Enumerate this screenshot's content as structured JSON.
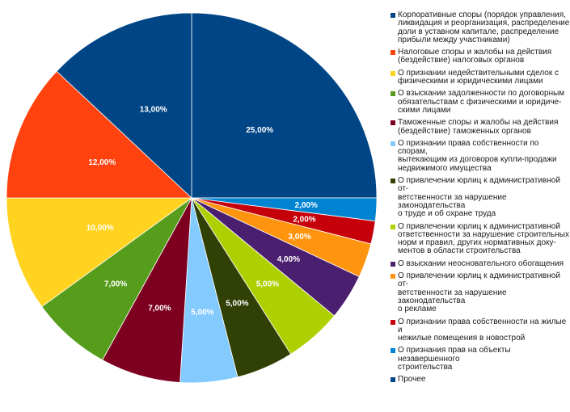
{
  "chart_data": {
    "type": "pie",
    "title": "",
    "start": "12 o'clock, clockwise",
    "slices": [
      {
        "value": 25,
        "label": "25,00%",
        "color": "#004586",
        "legend": "Корпоративные споры (порядок управления,\nликвидация и реорганизация, распределение\nдоли в уставном капитале, распределение\nприбыли между участниками)"
      },
      {
        "value": 2,
        "label": "2,00%",
        "color": "#0084d1",
        "legend": "О признания прав на объекты незавершенного\nстроительства"
      },
      {
        "value": 2,
        "label": "2,00%",
        "color": "#c5000b",
        "legend": "О признании права собственности на жилые и\nнежилые помещения в новострой"
      },
      {
        "value": 3,
        "label": "3,00%",
        "color": "#ff950e",
        "legend": "О привлечении юрлиц к административной от-\nветственности за нарушение законодательства\nо рекламе"
      },
      {
        "value": 4,
        "label": "4,00%",
        "color": "#4b1f6f",
        "legend": "О взыскании неосновательного обогащения"
      },
      {
        "value": 5,
        "label": "5,00%",
        "color": "#aecf00",
        "legend": "О привлечении юрлиц к административной\nответственности за нарушение строительных\nнорм и правил, других нормативных доку-\nментов в области строительства"
      },
      {
        "value": 5,
        "label": "5,00%",
        "color": "#314004",
        "legend": "О привлечении юрлиц к административной от-\nветственности за нарушение законодательства\nо труде и об охране труда"
      },
      {
        "value": 5,
        "label": "5,00%",
        "color": "#83caff",
        "legend": "О признании права собственности по спорам,\nвытекающим из договоров купли-продажи\nнедвижимого имущества"
      },
      {
        "value": 7,
        "label": "7,00%",
        "color": "#7e0021",
        "legend": "Таможенные споры и жалобы на действия\n(бездействие) таможенных органов"
      },
      {
        "value": 7,
        "label": "7,00%",
        "color": "#579d1c",
        "legend": "О взыскании задолженности по договорным\nобязательствам с физическими и юридиче-\nскими лицами"
      },
      {
        "value": 10,
        "label": "10,00%",
        "color": "#ffd320",
        "legend": "О признании недействительными сделок с\nфизическими и юридическими лицами"
      },
      {
        "value": 12,
        "label": "12,00%",
        "color": "#ff420e",
        "legend": "Налоговые споры и жалобы на действия\n(бездействие) налоговых органов"
      },
      {
        "value": 13,
        "label": "13,00%",
        "color": "#004586",
        "legend": "Прочее"
      }
    ],
    "legend_order": [
      0,
      11,
      10,
      9,
      8,
      7,
      6,
      5,
      4,
      3,
      2,
      1,
      12
    ],
    "legend_placement": "right"
  }
}
